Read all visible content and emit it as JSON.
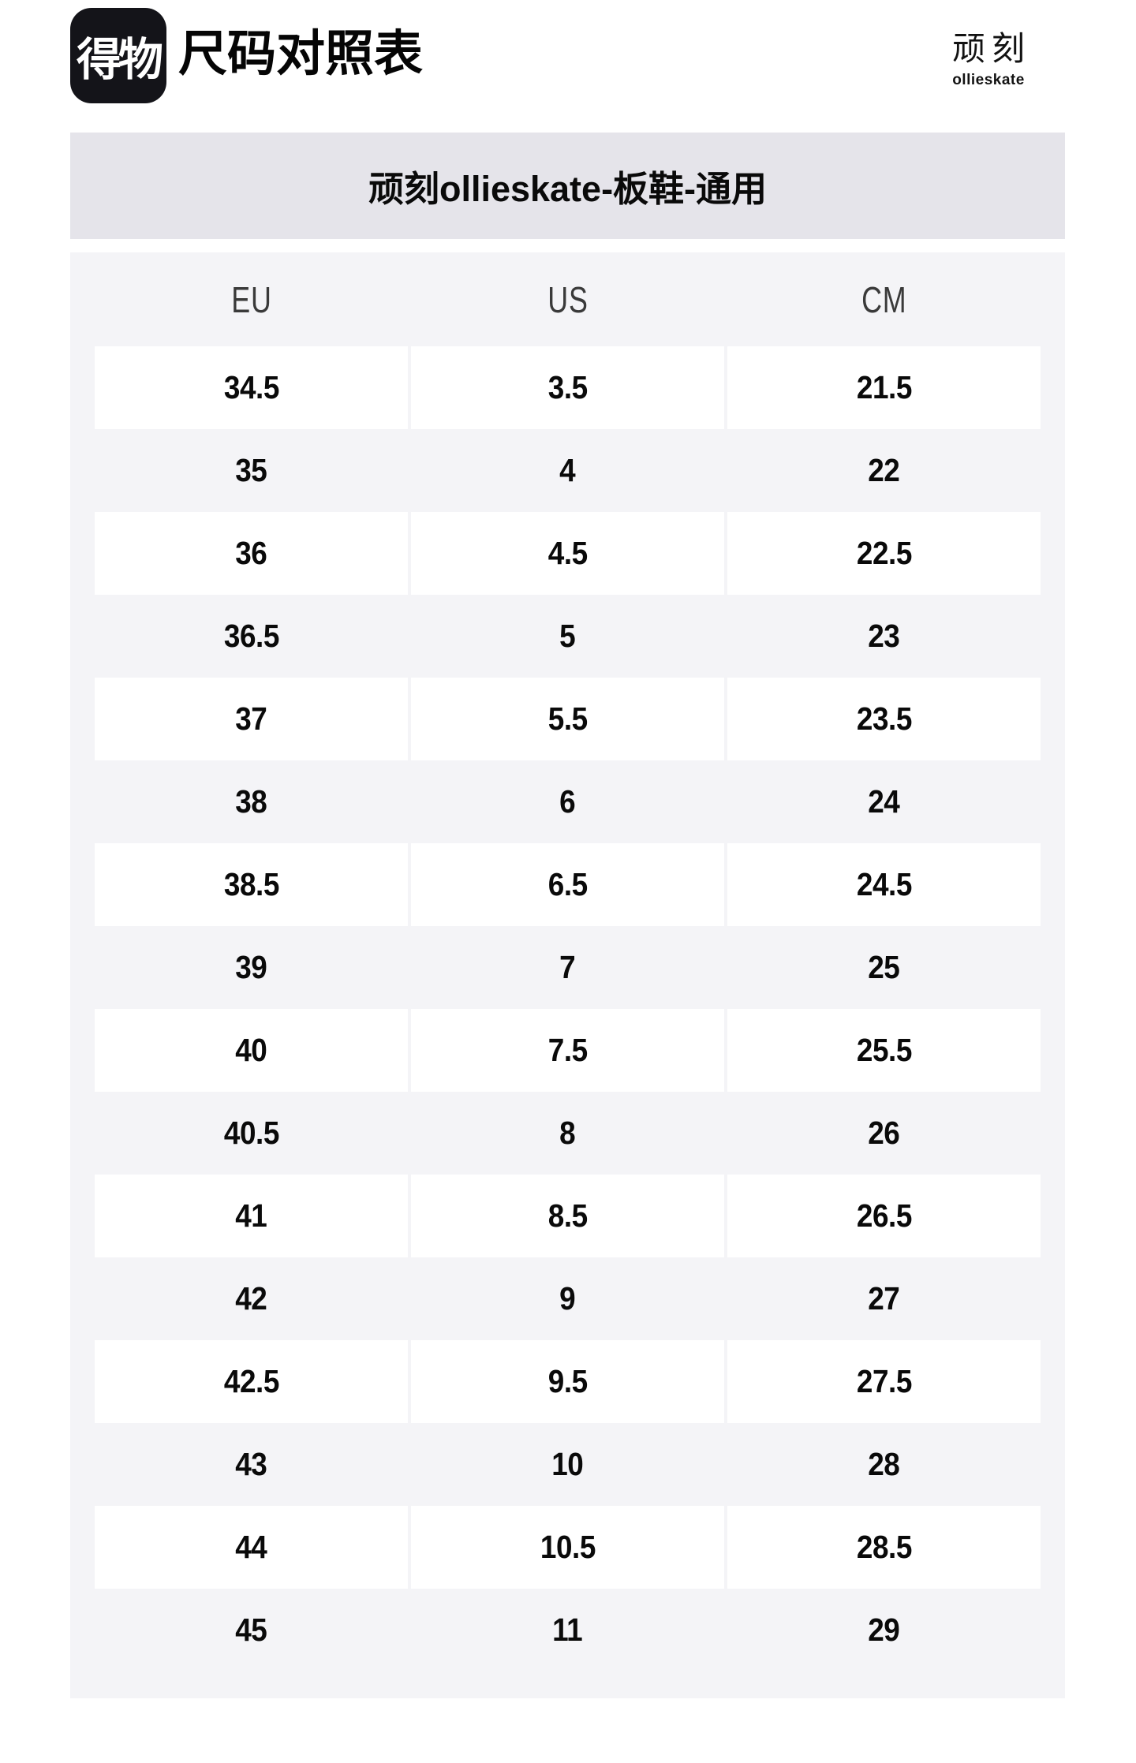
{
  "header": {
    "app_logo_text": "得物",
    "page_title": "尺码对照表",
    "brand_cn": "顽刻",
    "brand_en": "ollieskate"
  },
  "banner": {
    "title": "顽刻ollieskate-板鞋-通用"
  },
  "size_table": {
    "columns": [
      "EU",
      "US",
      "CM"
    ],
    "rows": [
      [
        "34.5",
        "3.5",
        "21.5"
      ],
      [
        "35",
        "4",
        "22"
      ],
      [
        "36",
        "4.5",
        "22.5"
      ],
      [
        "36.5",
        "5",
        "23"
      ],
      [
        "37",
        "5.5",
        "23.5"
      ],
      [
        "38",
        "6",
        "24"
      ],
      [
        "38.5",
        "6.5",
        "24.5"
      ],
      [
        "39",
        "7",
        "25"
      ],
      [
        "40",
        "7.5",
        "25.5"
      ],
      [
        "40.5",
        "8",
        "26"
      ],
      [
        "41",
        "8.5",
        "26.5"
      ],
      [
        "42",
        "9",
        "27"
      ],
      [
        "42.5",
        "9.5",
        "27.5"
      ],
      [
        "43",
        "10",
        "28"
      ],
      [
        "44",
        "10.5",
        "28.5"
      ],
      [
        "45",
        "11",
        "29"
      ]
    ]
  },
  "colors": {
    "logo_bg": "#141419",
    "banner_bg": "#e5e4ea",
    "panel_bg": "#f4f4f7",
    "row_bg": "#ffffff",
    "text": "#0a0a0a"
  }
}
